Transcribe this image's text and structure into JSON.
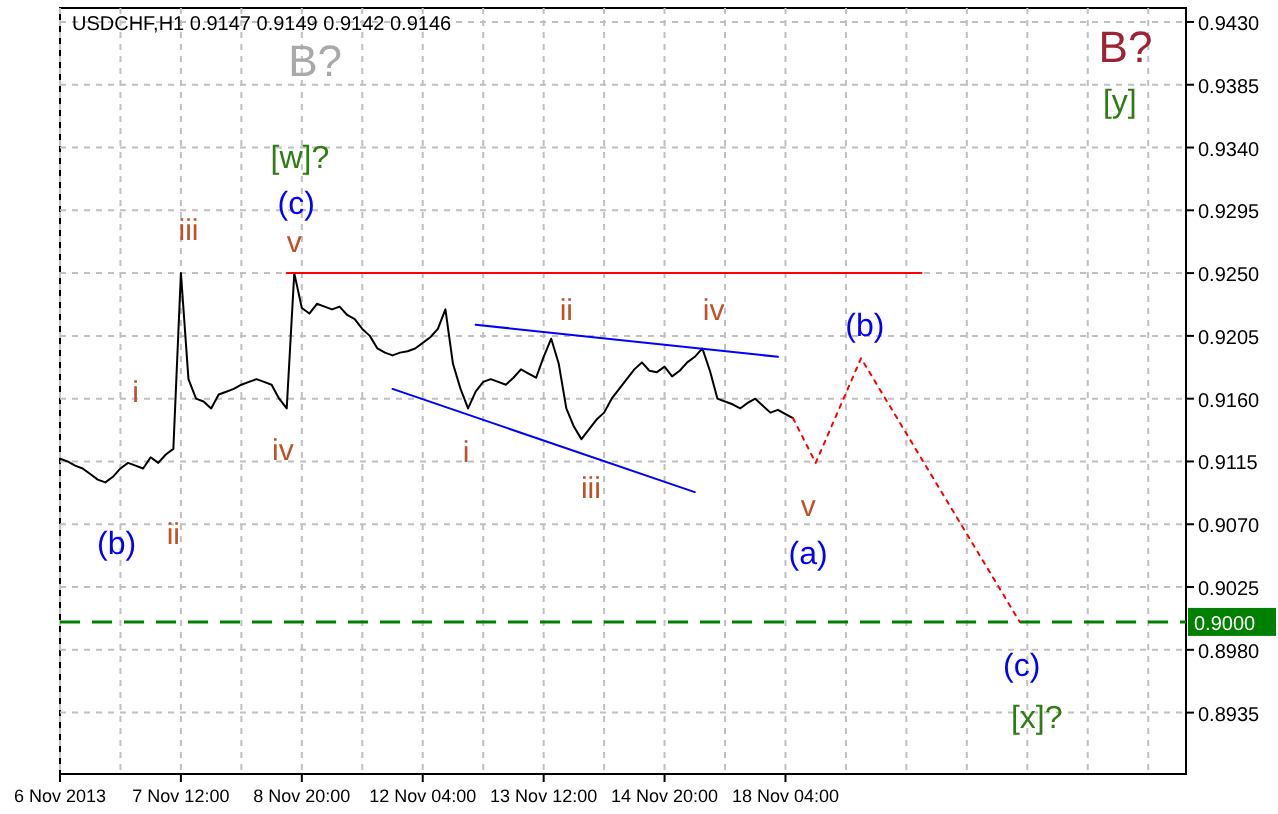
{
  "chart_data": {
    "type": "line",
    "title": "USDCHF,H1  0.9147 0.9149 0.9142 0.9146",
    "categories": [
      "6 Nov 2013",
      null,
      null,
      null,
      null,
      null,
      null,
      null,
      null,
      null,
      null,
      null,
      null,
      null,
      null,
      null,
      "7 Nov 12:00",
      null,
      null,
      null,
      null,
      null,
      null,
      null,
      null,
      null,
      null,
      null,
      null,
      null,
      null,
      null,
      "8 Nov 20:00",
      null,
      null,
      null,
      null,
      null,
      null,
      null,
      null,
      null,
      null,
      null,
      null,
      null,
      null,
      null,
      "12 Nov 04:00",
      null,
      null,
      null,
      null,
      null,
      null,
      null,
      null,
      null,
      null,
      null,
      null,
      null,
      null,
      null,
      "13 Nov 12:00",
      null,
      null,
      null,
      null,
      null,
      null,
      null,
      null,
      null,
      null,
      null,
      null,
      null,
      null,
      null,
      "14 Nov 20:00",
      null,
      null,
      null,
      null,
      null,
      null,
      null,
      null,
      null,
      null,
      null,
      null,
      null,
      null,
      null,
      "18 Nov 04:00",
      null,
      null,
      null,
      null,
      null,
      null,
      null,
      null,
      null,
      null,
      null,
      null,
      null,
      null,
      null,
      null,
      null,
      null,
      null,
      null,
      null,
      null,
      null,
      null,
      null,
      null,
      null,
      null,
      null,
      null,
      null,
      null,
      null,
      null,
      null,
      null,
      null,
      null,
      null,
      null,
      null,
      null,
      null,
      null,
      null,
      null,
      null,
      null,
      null,
      null,
      null,
      null
    ],
    "ylim": [
      0.8891,
      0.944
    ],
    "yticks": [
      {
        "value": 0.943,
        "label": "0.9430"
      },
      {
        "value": 0.9385,
        "label": "0.9385"
      },
      {
        "value": 0.934,
        "label": "0.9340"
      },
      {
        "value": 0.9295,
        "label": "0.9295"
      },
      {
        "value": 0.925,
        "label": "0.9250"
      },
      {
        "value": 0.9205,
        "label": "0.9205"
      },
      {
        "value": 0.916,
        "label": "0.9160"
      },
      {
        "value": 0.9115,
        "label": "0.9115"
      },
      {
        "value": 0.907,
        "label": "0.9070"
      },
      {
        "value": 0.9025,
        "label": "0.9025"
      },
      {
        "value": 0.898,
        "label": "0.8980"
      },
      {
        "value": 0.8935,
        "label": "0.8935"
      }
    ],
    "grid": true,
    "series": [
      {
        "color": "#000000",
        "values": [
          0.9117,
          0.9115,
          0.9112,
          0.911,
          0.9106,
          0.9102,
          0.91,
          0.9104,
          0.911,
          0.9114,
          0.9112,
          0.911,
          0.9118,
          0.9114,
          0.912,
          0.9124,
          0.925,
          0.9174,
          0.916,
          0.9158,
          0.9153,
          0.9163,
          0.9165,
          0.9167,
          0.917,
          0.9172,
          0.9174,
          0.9172,
          0.917,
          0.916,
          0.9153,
          0.925,
          0.9225,
          0.9221,
          0.9228,
          0.9226,
          0.9224,
          0.9226,
          0.922,
          0.9217,
          0.921,
          0.9205,
          0.9196,
          0.9193,
          0.9191,
          0.9193,
          0.9194,
          0.9196,
          0.92,
          0.9204,
          0.921,
          0.9224,
          0.9185,
          0.9167,
          0.9153,
          0.9165,
          0.9172,
          0.9174,
          0.9172,
          0.917,
          0.9175,
          0.9181,
          0.9178,
          0.9175,
          0.919,
          0.9203,
          0.9185,
          0.9153,
          0.914,
          0.9131,
          0.9138,
          0.9145,
          0.915,
          0.916,
          0.9167,
          0.9174,
          0.9181,
          0.9186,
          0.918,
          0.9179,
          0.9183,
          0.9176,
          0.918,
          0.9186,
          0.919,
          0.9196,
          0.918,
          0.916,
          0.9158,
          0.9156,
          0.9153,
          0.9157,
          0.916,
          0.9155,
          0.915,
          0.9152,
          0.9149,
          0.9146,
          null,
          null,
          null,
          null,
          null,
          null,
          null,
          null,
          null,
          null,
          null,
          null,
          null,
          null,
          null,
          null,
          null,
          null,
          null,
          null,
          null,
          null,
          null,
          null,
          null,
          null,
          null,
          null,
          null,
          null,
          null,
          null,
          null,
          null,
          null,
          null,
          null,
          null,
          null,
          null,
          null,
          null,
          null,
          null,
          null,
          null,
          null,
          null,
          null,
          null,
          null
        ]
      },
      {
        "color": "#ff0000",
        "line_style": "dotted",
        "values": [
          null,
          null,
          null,
          null,
          null,
          null,
          null,
          null,
          null,
          null,
          null,
          null,
          null,
          null,
          null,
          null,
          null,
          null,
          null,
          null,
          null,
          null,
          null,
          null,
          null,
          null,
          null,
          null,
          null,
          null,
          null,
          null,
          null,
          null,
          null,
          null,
          null,
          null,
          null,
          null,
          null,
          null,
          null,
          null,
          null,
          null,
          null,
          null,
          null,
          null,
          null,
          null,
          null,
          null,
          null,
          null,
          null,
          null,
          null,
          null,
          null,
          null,
          null,
          null,
          null,
          null,
          null,
          null,
          null,
          null,
          null,
          null,
          null,
          null,
          null,
          null,
          null,
          null,
          null,
          null,
          null,
          null,
          null,
          null,
          null,
          null,
          null,
          null,
          null,
          null,
          null,
          null,
          null,
          null,
          null,
          null,
          null,
          0.9146,
          null,
          null,
          0.9114,
          null,
          null,
          null,
          null,
          null,
          0.9189,
          null,
          null,
          null,
          null,
          null,
          null,
          null,
          null,
          null,
          null,
          null,
          null,
          null,
          null,
          null,
          null,
          null,
          null,
          null,
          null,
          0.9,
          null,
          null,
          null,
          null,
          null,
          null,
          null,
          null,
          null,
          null,
          null,
          null,
          null,
          null,
          null,
          null,
          null,
          null,
          null,
          null,
          null
        ]
      },
      {
        "color": "#0000ff",
        "values": [
          null,
          null,
          null,
          null,
          null,
          null,
          null,
          null,
          null,
          null,
          null,
          null,
          null,
          null,
          null,
          null,
          null,
          null,
          null,
          null,
          null,
          null,
          null,
          null,
          null,
          null,
          null,
          null,
          null,
          null,
          null,
          null,
          null,
          null,
          null,
          null,
          null,
          null,
          null,
          null,
          null,
          null,
          null,
          null,
          null,
          null,
          null,
          null,
          null,
          null,
          null,
          null,
          null,
          null,
          null,
          0.9213,
          null,
          null,
          null,
          null,
          null,
          null,
          null,
          null,
          null,
          null,
          null,
          null,
          null,
          null,
          null,
          null,
          null,
          null,
          null,
          null,
          null,
          null,
          null,
          null,
          null,
          null,
          null,
          null,
          null,
          null,
          null,
          null,
          null,
          null,
          null,
          null,
          null,
          null,
          null,
          0.919,
          null,
          null,
          null,
          null,
          null,
          null,
          null,
          null,
          null,
          null,
          null,
          null,
          null,
          null,
          null,
          null,
          null,
          null,
          null,
          null,
          null,
          null,
          null,
          null,
          null,
          null,
          null,
          null,
          null,
          null,
          null,
          null,
          null,
          null,
          null,
          null,
          null,
          null,
          null,
          null,
          null,
          null,
          null,
          null,
          null,
          null,
          null,
          null,
          null,
          null,
          null,
          null,
          null
        ]
      },
      {
        "color": "#0000ff",
        "values": [
          null,
          null,
          null,
          null,
          null,
          null,
          null,
          null,
          null,
          null,
          null,
          null,
          null,
          null,
          null,
          null,
          null,
          null,
          null,
          null,
          null,
          null,
          null,
          null,
          null,
          null,
          null,
          null,
          null,
          null,
          null,
          null,
          null,
          null,
          null,
          null,
          null,
          null,
          null,
          null,
          null,
          null,
          null,
          null,
          0.9167,
          null,
          null,
          null,
          null,
          null,
          null,
          null,
          null,
          null,
          null,
          null,
          null,
          null,
          null,
          null,
          null,
          null,
          null,
          null,
          null,
          null,
          null,
          null,
          null,
          null,
          null,
          null,
          null,
          null,
          null,
          null,
          null,
          null,
          null,
          null,
          null,
          null,
          null,
          null,
          0.9093,
          null,
          null,
          null,
          null,
          null,
          null,
          null,
          null,
          null,
          null,
          null,
          null,
          null,
          null,
          null,
          null,
          null,
          null,
          null,
          null,
          null,
          null,
          null,
          null,
          null,
          null,
          null,
          null,
          null,
          null,
          null,
          null,
          null,
          null,
          null,
          null,
          null,
          null,
          null,
          null,
          null,
          null,
          null,
          null,
          null,
          null,
          null,
          null,
          null,
          null,
          null,
          null,
          null,
          null,
          null,
          null,
          null,
          null,
          null,
          null,
          null,
          null,
          null,
          null
        ]
      },
      {
        "color": "#ff0000",
        "values": [
          null,
          null,
          null,
          null,
          null,
          null,
          null,
          null,
          null,
          null,
          null,
          null,
          null,
          null,
          null,
          null,
          null,
          null,
          null,
          null,
          null,
          null,
          null,
          null,
          null,
          null,
          null,
          null,
          null,
          null,
          0.925,
          null,
          null,
          null,
          null,
          null,
          null,
          null,
          null,
          null,
          null,
          null,
          null,
          null,
          null,
          null,
          null,
          null,
          null,
          null,
          null,
          null,
          null,
          null,
          null,
          null,
          null,
          null,
          null,
          null,
          null,
          null,
          null,
          null,
          null,
          null,
          null,
          null,
          null,
          null,
          null,
          null,
          null,
          null,
          null,
          null,
          null,
          null,
          null,
          null,
          null,
          null,
          null,
          null,
          null,
          null,
          null,
          null,
          null,
          null,
          null,
          null,
          null,
          null,
          null,
          null,
          null,
          null,
          null,
          null,
          null,
          null,
          null,
          null,
          null,
          null,
          null,
          null,
          null,
          null,
          null,
          null,
          null,
          null,
          0.925,
          null,
          null,
          null,
          null,
          null,
          null,
          null,
          null,
          null,
          null,
          null,
          null,
          null,
          null,
          null,
          null,
          null,
          null,
          null,
          null,
          null,
          null,
          null,
          null,
          null,
          null,
          null,
          null,
          null,
          null,
          null,
          null,
          null,
          null
        ]
      }
    ],
    "ref_lines": [
      {
        "axis": "y",
        "value": 0.9,
        "label": "0.9000",
        "color": "#008000",
        "line_style": "dashed"
      }
    ],
    "annotations": [
      "i",
      "ii",
      "iii",
      "iv",
      "v",
      "(c)",
      "[w]?",
      "B?",
      "(b)",
      "i",
      "ii",
      "iii",
      "iv",
      "v",
      "(a)",
      "(b)",
      "(c)",
      "[x]?",
      "B?",
      "[y]"
    ]
  }
}
